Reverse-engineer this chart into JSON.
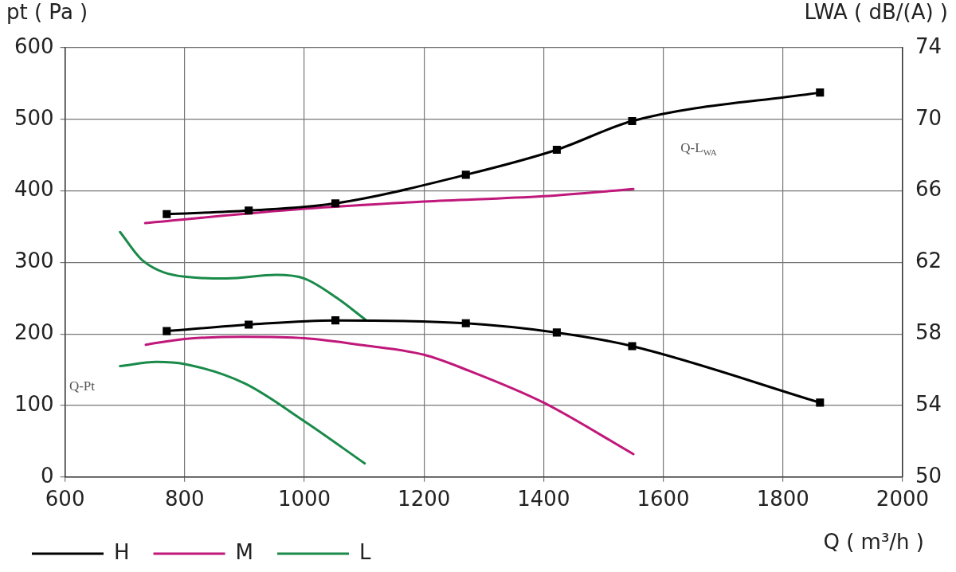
{
  "chart_data": {
    "type": "line",
    "xlabel": "Q ( m³/h )",
    "ylabel": "pt ( Pa )",
    "y2label": "LWA ( dB/(A) )",
    "xlim": [
      600,
      2000
    ],
    "xticks": [
      600,
      800,
      1000,
      1200,
      1400,
      1600,
      1800,
      2000
    ],
    "ylim": [
      0,
      600
    ],
    "yticks": [
      0,
      100,
      200,
      300,
      400,
      500,
      600
    ],
    "y2lim": [
      50,
      74
    ],
    "y2ticks": [
      50,
      54,
      58,
      62,
      66,
      70,
      74
    ],
    "grid": true,
    "legend": "bottom left",
    "line_style": "solid",
    "series": [
      {
        "name": "H",
        "color": "#000000",
        "marker": "square",
        "x": [
          770,
          907,
          1052,
          1270,
          1422,
          1548,
          1862
        ],
        "values": [
          204,
          213,
          219,
          215,
          202,
          183,
          104
        ]
      },
      {
        "name": "M",
        "color": "#c0187a",
        "marker": "none",
        "x": [
          735,
          800,
          900,
          1000,
          1100,
          1200,
          1274,
          1400,
          1550
        ],
        "values": [
          185,
          193,
          196,
          194,
          184,
          171,
          149,
          104,
          32
        ]
      },
      {
        "name": "L",
        "color": "#1a8a4a",
        "marker": "none",
        "x": [
          692,
          753,
          800,
          900,
          1000,
          1101
        ],
        "values": [
          155,
          161,
          158,
          131,
          78,
          19
        ]
      },
      {
        "color": "#000000",
        "marker": "square",
        "axis": "y2",
        "x": [
          770,
          907,
          1052,
          1270,
          1422,
          1548,
          1862
        ],
        "values": [
          64.7,
          64.9,
          65.3,
          66.9,
          68.3,
          69.9,
          71.5
        ]
      },
      {
        "color": "#c0187a",
        "marker": "none",
        "axis": "y2",
        "x": [
          734,
          1000,
          1200,
          1400,
          1550
        ],
        "values": [
          64.2,
          65.0,
          65.4,
          65.7,
          66.1
        ]
      },
      {
        "color": "#1a8a4a",
        "marker": "none",
        "axis": "y2",
        "x": [
          692,
          730,
          800,
          870,
          953,
          1000,
          1055,
          1102
        ],
        "values": [
          63.7,
          62.1,
          61.2,
          61.1,
          61.3,
          61.1,
          60.0,
          58.8
        ]
      }
    ],
    "annotations": [
      "Q-Pt",
      "Q-L$_{WA}$"
    ]
  }
}
